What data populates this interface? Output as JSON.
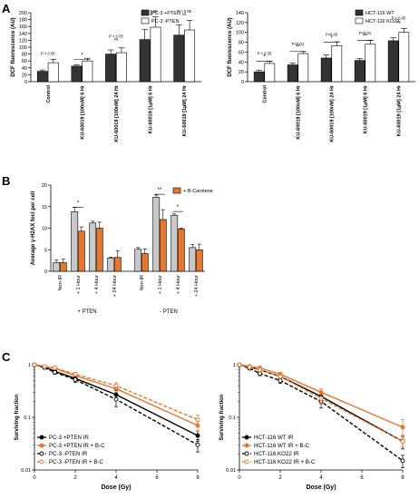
{
  "panel_labels": {
    "a": "A",
    "b": "B",
    "c": "C"
  },
  "chart_data": [
    {
      "id": "A-left",
      "type": "bar",
      "title": "",
      "ylabel": "DCF fluorescence (AU)",
      "xlabel": "",
      "ylim": [
        0,
        200
      ],
      "yticks": [
        "0",
        "20",
        "40",
        "60",
        "80",
        "100",
        "120",
        "140",
        "160",
        "180",
        "200"
      ],
      "categories": [
        "Control",
        "KU-60019 [100nM] 6 Hr",
        "KU-60019 [100nM] 24 Hr",
        "KU-60019 [1µM] 6 Hr",
        "KU-60019 [1µM] 24 Hr"
      ],
      "legend_position": "top-right",
      "series": [
        {
          "name": "PC-3 +PTEN",
          "color": "#333333",
          "values": [
            30,
            45,
            80,
            122,
            135
          ],
          "errors": [
            4,
            4,
            12,
            30,
            30
          ]
        },
        {
          "name": "PC-3 -PTEN",
          "color": "#ffffff",
          "values": [
            55,
            60,
            84,
            158,
            150
          ],
          "errors": [
            10,
            8,
            14,
            30,
            28
          ]
        }
      ],
      "annotations": [
        {
          "text": "P < 0.05",
          "between": 0,
          "level": 78
        },
        {
          "text": "*",
          "between": 1,
          "level": 73
        },
        {
          "text": "P < 0.05",
          "between": 2,
          "level": 128
        },
        {
          "text": "ns",
          "between": 2,
          "level": 120
        },
        {
          "text": "P > 0.05",
          "between": 3,
          "level": 200
        },
        {
          "text": "ns",
          "between": 3,
          "level": 192
        },
        {
          "text": "P > 0.05",
          "between": 4,
          "level": 200
        },
        {
          "text": "ns",
          "between": 4,
          "level": 192
        }
      ]
    },
    {
      "id": "A-right",
      "type": "bar",
      "title": "",
      "ylabel": "DCF fluorescence (AU)",
      "xlabel": "",
      "ylim": [
        0,
        140
      ],
      "yticks": [
        "0",
        "20",
        "40",
        "60",
        "80",
        "100",
        "120",
        "140"
      ],
      "categories": [
        "Control",
        "KU-60019 [100nM] 6 Hr",
        "KU-60019 [100nM] 24 Hr",
        "KU-60019 [1µM] 6 Hr",
        "KU-60019 [1µM] 24 Hr"
      ],
      "legend_position": "top-right",
      "series": [
        {
          "name": "HCT-116 WT",
          "color": "#333333",
          "values": [
            20,
            34,
            48,
            43,
            83
          ],
          "errors": [
            3,
            4,
            6,
            4,
            6
          ]
        },
        {
          "name": "HCT-116 KO22",
          "color": "#ffffff",
          "values": [
            37,
            57,
            73,
            76,
            100
          ],
          "errors": [
            4,
            4,
            8,
            8,
            8
          ]
        }
      ],
      "annotations": [
        {
          "text": "P < 0.05",
          "between": 0,
          "level": 54
        },
        {
          "text": "*",
          "between": 0,
          "level": 47
        },
        {
          "text": "P<0.01",
          "between": 1,
          "level": 74
        },
        {
          "text": "**",
          "between": 1,
          "level": 67
        },
        {
          "text": "P<0.05",
          "between": 2,
          "level": 93
        },
        {
          "text": "*",
          "between": 2,
          "level": 86
        },
        {
          "text": "P<0.01",
          "between": 3,
          "level": 96
        },
        {
          "text": "**",
          "between": 3,
          "level": 89
        },
        {
          "text": "P > 0.05",
          "between": 4,
          "level": 126
        },
        {
          "text": "ns",
          "between": 4,
          "level": 119
        }
      ]
    },
    {
      "id": "B",
      "type": "bar",
      "title": "",
      "ylabel": "Average γ-H2AX foci per cell",
      "xlabel": "",
      "ylim": [
        0,
        20
      ],
      "yticks": [
        "0",
        "5",
        "10",
        "15",
        "20"
      ],
      "categories": [
        "Non-IR",
        "+ 1 Hour",
        "+ 4 Hour",
        "+ 24 Hour",
        "Non-IR",
        "+ 1 Hour",
        "+ 4 Hour",
        "+ 24 Hour"
      ],
      "groups": [
        "+ PTEN",
        "- PTEN"
      ],
      "legend_position": "top-right",
      "legend": [
        "+ B-Carotene"
      ],
      "series": [
        {
          "name": "",
          "color": "#c8c8c8",
          "values": [
            2.0,
            13.8,
            11.2,
            3.1,
            5.1,
            17.2,
            13.0,
            5.5
          ],
          "errors": [
            0.6,
            1.0,
            0.4,
            0.2,
            0.4,
            0.5,
            0.3,
            0.7
          ]
        },
        {
          "name": "+ B-Carotene",
          "color": "#e8772e",
          "values": [
            2.0,
            9.3,
            10.0,
            3.2,
            4.1,
            12.0,
            9.8,
            5.0
          ],
          "errors": [
            0.8,
            1.0,
            1.4,
            1.6,
            1.1,
            2.3,
            0.2,
            1.3
          ]
        }
      ],
      "annotations": [
        {
          "text": "*",
          "between": 1,
          "level": 15.5
        },
        {
          "text": "**",
          "between": 5,
          "level": 18.5
        },
        {
          "text": "*",
          "between": 6,
          "level": 14.5
        }
      ]
    },
    {
      "id": "C-left",
      "type": "line",
      "title": "",
      "ylabel": "Surviving fraction",
      "xlabel": "Dose (Gy)",
      "xlim": [
        0,
        8
      ],
      "xticks": [
        "0",
        "2",
        "4",
        "6",
        "8"
      ],
      "ylim": [
        0.01,
        1
      ],
      "yscale": "log",
      "yticks": [
        "0.01",
        "0.1",
        "1"
      ],
      "legend_position": "bottom-left",
      "x": [
        0,
        0.5,
        1,
        2,
        4,
        8
      ],
      "series": [
        {
          "name": "PC-3 +PTEN IR",
          "color": "#000000",
          "marker": "filled",
          "dashed": false,
          "values": [
            1.0,
            0.9,
            0.75,
            0.55,
            0.27,
            0.045
          ],
          "errors": [
            0,
            0.05,
            0.06,
            0.06,
            0.05,
            0.01
          ]
        },
        {
          "name": "PC-3 +PTEN IR + B-C",
          "color": "#e8772e",
          "marker": "filled",
          "dashed": false,
          "values": [
            1.0,
            0.92,
            0.85,
            0.62,
            0.35,
            0.07
          ],
          "errors": [
            0,
            0.05,
            0.06,
            0.06,
            0.05,
            0.015
          ]
        },
        {
          "name": "PC-3 -PTEN IR",
          "color": "#000000",
          "marker": "open",
          "dashed": true,
          "values": [
            1.0,
            0.88,
            0.72,
            0.52,
            0.22,
            0.03
          ],
          "errors": [
            0,
            0.05,
            0.06,
            0.06,
            0.06,
            0.008
          ]
        },
        {
          "name": "PC-3 -PTEN IR + B-C",
          "color": "#e8772e",
          "marker": "open",
          "dashed": true,
          "values": [
            1.0,
            0.93,
            0.87,
            0.66,
            0.4,
            0.09
          ],
          "errors": [
            0,
            0.05,
            0.06,
            0.06,
            0.05,
            0.02
          ]
        }
      ]
    },
    {
      "id": "C-right",
      "type": "line",
      "title": "",
      "ylabel": "Surviving fraction",
      "xlabel": "Dose (Gy)",
      "xlim": [
        0,
        8
      ],
      "xticks": [
        "0",
        "2",
        "4",
        "6",
        "8"
      ],
      "ylim": [
        0.01,
        1
      ],
      "yscale": "log",
      "yticks": [
        "0.01",
        "0.1",
        "1"
      ],
      "legend_position": "bottom-left",
      "x": [
        0,
        0.5,
        1,
        2,
        4,
        8
      ],
      "series": [
        {
          "name": "HCT-116 WT IR",
          "color": "#000000",
          "marker": "filled",
          "dashed": false,
          "values": [
            1.0,
            0.9,
            0.8,
            0.6,
            0.25,
            0.035
          ],
          "errors": [
            0,
            0.05,
            0.06,
            0.06,
            0.05,
            0.01
          ]
        },
        {
          "name": "HCT-116 WT IR + B-C",
          "color": "#e8772e",
          "marker": "filled",
          "dashed": false,
          "values": [
            1.0,
            0.93,
            0.87,
            0.66,
            0.3,
            0.065
          ],
          "errors": [
            0,
            0.05,
            0.06,
            0.06,
            0.05,
            0.025
          ]
        },
        {
          "name": "HCT-116 KO22 IR",
          "color": "#000000",
          "marker": "open",
          "dashed": true,
          "values": [
            1.0,
            0.85,
            0.68,
            0.5,
            0.2,
            0.015
          ],
          "errors": [
            0,
            0.05,
            0.06,
            0.06,
            0.05,
            0.004
          ]
        },
        {
          "name": "HCT-116 KO22 IR + B-C",
          "color": "#e8772e",
          "marker": "open",
          "dashed": true,
          "values": [
            1.0,
            0.9,
            0.8,
            0.6,
            0.23,
            0.035
          ],
          "errors": [
            0,
            0.05,
            0.06,
            0.06,
            0.05,
            0.008
          ]
        }
      ]
    }
  ]
}
